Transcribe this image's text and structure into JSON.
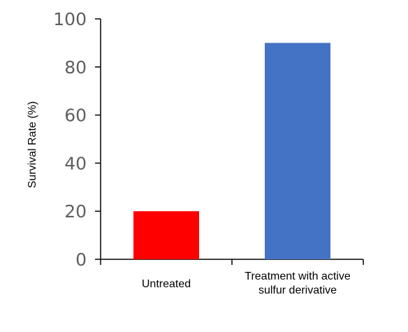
{
  "chart_data": {
    "type": "bar",
    "title": "",
    "xlabel": "",
    "ylabel": "Survival Rate (%)",
    "ylim": [
      0,
      100
    ],
    "yticks": [
      0,
      20,
      40,
      60,
      80,
      100
    ],
    "categories": [
      [
        "Untreated"
      ],
      [
        "Treatment with active",
        "sulfur derivative"
      ]
    ],
    "values": [
      20,
      90
    ],
    "colors": [
      "#ff0000",
      "#4472c4"
    ],
    "grid": false,
    "legend": "none"
  }
}
